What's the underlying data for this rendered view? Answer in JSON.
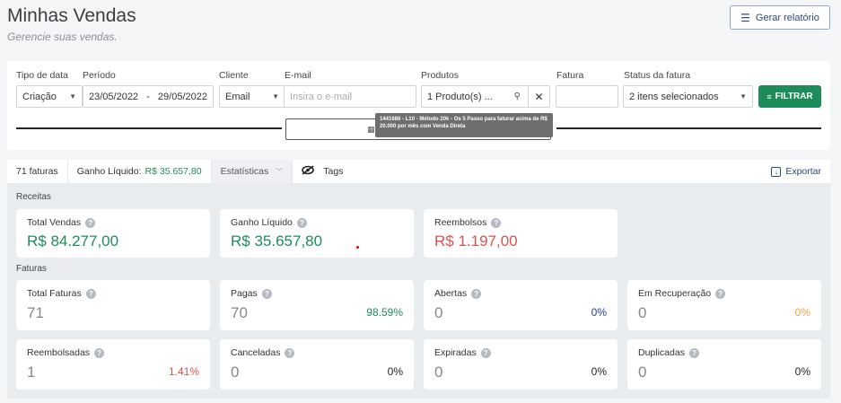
{
  "header": {
    "title": "Minhas Vendas",
    "subtitle": "Gerencie suas vendas.",
    "report_button": "Gerar relatório"
  },
  "filters": {
    "tipo_label": "Tipo de data",
    "tipo_value": "Criação",
    "periodo_label": "Período",
    "periodo_start": "23/05/2022",
    "periodo_sep": "-",
    "periodo_end": "29/05/2022",
    "cliente_label": "Cliente",
    "cliente_value": "Email",
    "email_label": "E-mail",
    "email_placeholder": "Insira o e-mail",
    "produtos_label": "Produtos",
    "produtos_value": "1 Produto(s) ...",
    "fatura_label": "Fatura",
    "status_label": "Status da fatura",
    "status_value": "2 itens selecionados",
    "filtrar_button": "FILTRAR",
    "tooltip": "1441686 - L10 - Método 20k - Os 5 Passo para faturar acima de R$ 20.000 por mês com Venda Direta"
  },
  "tabs": {
    "faturas": "71 faturas",
    "ganho_label": "Ganho Líquido:",
    "ganho_value": "R$ 35.657,80",
    "estatisticas": "Estatísticas",
    "tags": "Tags",
    "exportar": "Exportar"
  },
  "receitas": {
    "section_label": "Receitas",
    "cards": [
      {
        "label": "Total Vendas",
        "value": "R$ 84.277,00",
        "color": "#1e8c5a"
      },
      {
        "label": "Ganho Líquido",
        "value": "R$ 35.657,80",
        "color": "#1e8c5a"
      },
      {
        "label": "Reembolsos",
        "value": "R$ 1.197,00",
        "color": "#d9534f"
      }
    ]
  },
  "faturas": {
    "section_label": "Faturas",
    "cards": [
      {
        "label": "Total Faturas",
        "value": "71",
        "pct": ""
      },
      {
        "label": "Pagas",
        "value": "70",
        "pct": "98.59%",
        "pct_color": "#1e8c5a"
      },
      {
        "label": "Abertas",
        "value": "0",
        "pct": "0%",
        "pct_color": "#1f3a9c"
      },
      {
        "label": "Em Recuperação",
        "value": "0",
        "pct": "0%",
        "pct_color": "#f0a040"
      },
      {
        "label": "Reembolsadas",
        "value": "1",
        "pct": "1.41%",
        "pct_color": "#d9534f"
      },
      {
        "label": "Canceladas",
        "value": "0",
        "pct": "0%",
        "pct_color": "#222222"
      },
      {
        "label": "Expiradas",
        "value": "0",
        "pct": "0%",
        "pct_color": "#222222"
      },
      {
        "label": "Duplicadas",
        "value": "0",
        "pct": "0%",
        "pct_color": "#222222"
      }
    ]
  }
}
